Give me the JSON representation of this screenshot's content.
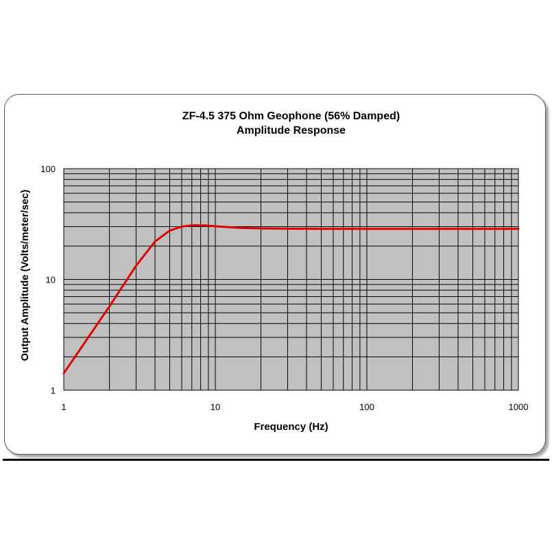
{
  "chart_data": {
    "type": "line",
    "title": "ZF-4.5  375 Ohm Geophone (56% Damped)",
    "subtitle": "Amplitude Response",
    "xlabel": "Frequency (Hz)",
    "ylabel": "Output Amplitude (Volts/meter/sec)",
    "xscale": "log",
    "yscale": "log",
    "xlim": [
      1,
      1000
    ],
    "ylim": [
      1,
      100
    ],
    "x_ticks": [
      "1",
      "10",
      "100",
      "1000"
    ],
    "y_ticks": [
      "1",
      "10",
      "100"
    ],
    "grid": true,
    "legend": "none",
    "plot_background": "#c0c0c0",
    "series": [
      {
        "color": "#e00000",
        "x": [
          1,
          2,
          3,
          4,
          5,
          6,
          7,
          8,
          9,
          10,
          12,
          15,
          20,
          30,
          50,
          100,
          200,
          500,
          1000
        ],
        "y": [
          1.42,
          5.7,
          13.3,
          22.0,
          27.6,
          30.0,
          30.8,
          30.8,
          30.6,
          30.2,
          29.7,
          29.2,
          28.9,
          28.7,
          28.6,
          28.6,
          28.6,
          28.6,
          28.6
        ]
      }
    ]
  }
}
